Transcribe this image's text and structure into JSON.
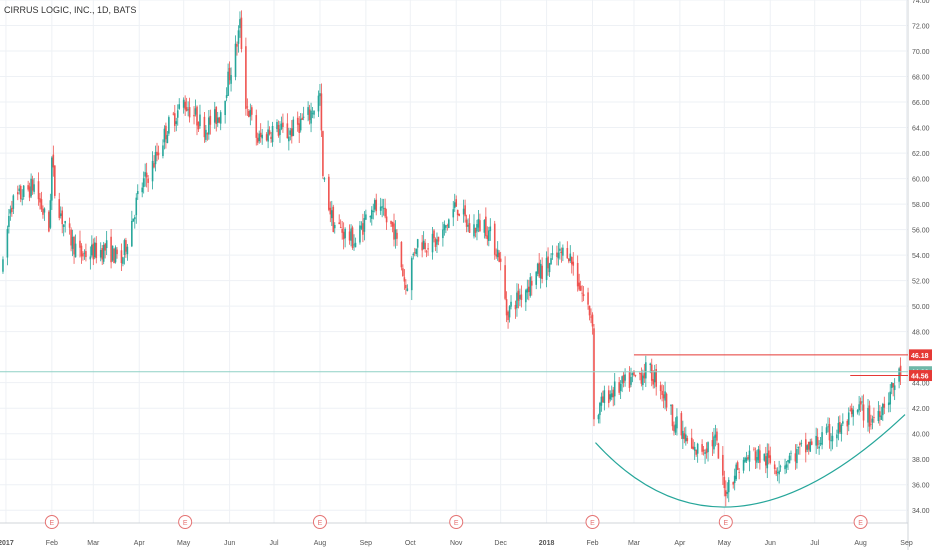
{
  "header": {
    "title": "CIRRUS LOGIC, INC., 1D, BATS"
  },
  "colors": {
    "up": "#26a69a",
    "down": "#ef5350",
    "bg": "#ffffff",
    "grid": "#eef1f5",
    "axis_text": "#555555",
    "resistance": "#e53935",
    "price_line": "#8fd1c6",
    "cup_curve": "#26a69a",
    "earnings": "#e57373",
    "price_badge": "#6fb8a9"
  },
  "chart_data": {
    "type": "candlestick",
    "title": "CIRRUS LOGIC, INC., 1D, BATS",
    "ylim": [
      33,
      74
    ],
    "y_ticks": [
      {
        "v": 34,
        "label": "34.00"
      },
      {
        "v": 36,
        "label": "36.00"
      },
      {
        "v": 38,
        "label": "38.00"
      },
      {
        "v": 40,
        "label": "40.00"
      },
      {
        "v": 42,
        "label": "42.00"
      },
      {
        "v": 44,
        "label": "44.00"
      },
      {
        "v": 48,
        "label": "48.00"
      },
      {
        "v": 50,
        "label": "50.00"
      },
      {
        "v": 52,
        "label": "52.00"
      },
      {
        "v": 54,
        "label": "54.00"
      },
      {
        "v": 56,
        "label": "56.00"
      },
      {
        "v": 58,
        "label": "58.00"
      },
      {
        "v": 60,
        "label": "60.00"
      },
      {
        "v": 62,
        "label": "62.00"
      },
      {
        "v": 64,
        "label": "64.00"
      },
      {
        "v": 66,
        "label": "66.00"
      },
      {
        "v": 68,
        "label": "68.00"
      },
      {
        "v": 70,
        "label": "70.00"
      },
      {
        "v": 72,
        "label": "72.00"
      },
      {
        "v": 74,
        "label": "74.00"
      }
    ],
    "x_ticks": [
      {
        "d": "2017-01-01",
        "label": "2017",
        "bold": true
      },
      {
        "d": "2017-02-01",
        "label": "Feb"
      },
      {
        "d": "2017-03-01",
        "label": "Mar"
      },
      {
        "d": "2017-04-01",
        "label": "Apr"
      },
      {
        "d": "2017-05-01",
        "label": "May"
      },
      {
        "d": "2017-06-01",
        "label": "Jun"
      },
      {
        "d": "2017-07-01",
        "label": "Jul"
      },
      {
        "d": "2017-08-01",
        "label": "Aug"
      },
      {
        "d": "2017-09-01",
        "label": "Sep"
      },
      {
        "d": "2017-10-01",
        "label": "Oct"
      },
      {
        "d": "2017-11-01",
        "label": "Nov"
      },
      {
        "d": "2017-12-01",
        "label": "Dec"
      },
      {
        "d": "2018-01-01",
        "label": "2018",
        "bold": true
      },
      {
        "d": "2018-02-01",
        "label": "Feb"
      },
      {
        "d": "2018-03-01",
        "label": "Mar"
      },
      {
        "d": "2018-04-01",
        "label": "Apr"
      },
      {
        "d": "2018-05-01",
        "label": "May"
      },
      {
        "d": "2018-06-01",
        "label": "Jun"
      },
      {
        "d": "2018-07-01",
        "label": "Jul"
      },
      {
        "d": "2018-08-01",
        "label": "Aug"
      },
      {
        "d": "2018-09-01",
        "label": "Sep"
      }
    ],
    "x_range": [
      "2016-12-28",
      "2018-09-02"
    ],
    "earnings_marker": "E",
    "earnings_dates": [
      "2017-02-01",
      "2017-05-02",
      "2017-08-01",
      "2017-11-01",
      "2018-02-01",
      "2018-05-02",
      "2018-08-01"
    ],
    "trend_path": [
      [
        "2016-12-30",
        53.0
      ],
      [
        "2017-01-04",
        58.0
      ],
      [
        "2017-01-20",
        59.5
      ],
      [
        "2017-01-30",
        56.0
      ],
      [
        "2017-02-01",
        61.5
      ],
      [
        "2017-02-03",
        59.0
      ],
      [
        "2017-02-10",
        56.0
      ],
      [
        "2017-02-20",
        54.0
      ],
      [
        "2017-03-10",
        54.5
      ],
      [
        "2017-03-20",
        53.5
      ],
      [
        "2017-04-01",
        59.0
      ],
      [
        "2017-04-10",
        61.0
      ],
      [
        "2017-04-20",
        64.0
      ],
      [
        "2017-05-01",
        66.0
      ],
      [
        "2017-05-15",
        64.0
      ],
      [
        "2017-05-25",
        65.0
      ],
      [
        "2017-06-05",
        70.0
      ],
      [
        "2017-06-08",
        72.0
      ],
      [
        "2017-06-12",
        66.0
      ],
      [
        "2017-06-20",
        63.0
      ],
      [
        "2017-07-01",
        64.0
      ],
      [
        "2017-07-10",
        63.5
      ],
      [
        "2017-07-25",
        65.0
      ],
      [
        "2017-08-01",
        66.5
      ],
      [
        "2017-08-03",
        60.0
      ],
      [
        "2017-08-10",
        56.5
      ],
      [
        "2017-08-25",
        55.0
      ],
      [
        "2017-09-05",
        58.0
      ],
      [
        "2017-09-20",
        56.0
      ],
      [
        "2017-09-28",
        51.5
      ],
      [
        "2017-10-05",
        55.0
      ],
      [
        "2017-10-20",
        55.0
      ],
      [
        "2017-11-01",
        58.0
      ],
      [
        "2017-11-10",
        56.0
      ],
      [
        "2017-11-20",
        56.5
      ],
      [
        "2017-11-30",
        54.0
      ],
      [
        "2017-12-05",
        49.5
      ],
      [
        "2017-12-15",
        51.0
      ],
      [
        "2017-12-25",
        52.5
      ],
      [
        "2018-01-05",
        53.5
      ],
      [
        "2018-01-15",
        54.5
      ],
      [
        "2018-01-25",
        51.0
      ],
      [
        "2018-02-01",
        49.0
      ],
      [
        "2018-02-02",
        41.0
      ],
      [
        "2018-02-10",
        43.0
      ],
      [
        "2018-02-25",
        44.0
      ],
      [
        "2018-03-10",
        45.0
      ],
      [
        "2018-03-18",
        44.0
      ],
      [
        "2018-03-28",
        41.0
      ],
      [
        "2018-04-10",
        38.5
      ],
      [
        "2018-04-25",
        39.5
      ],
      [
        "2018-05-01",
        35.5
      ],
      [
        "2018-05-08",
        37.0
      ],
      [
        "2018-05-20",
        38.5
      ],
      [
        "2018-06-05",
        37.5
      ],
      [
        "2018-06-20",
        38.5
      ],
      [
        "2018-07-05",
        39.5
      ],
      [
        "2018-07-20",
        40.5
      ],
      [
        "2018-08-01",
        42.0
      ],
      [
        "2018-08-08",
        41.0
      ],
      [
        "2018-08-20",
        43.0
      ],
      [
        "2018-08-28",
        44.86
      ]
    ],
    "resistance_lines": [
      {
        "value": 46.18,
        "from": "2018-03-01",
        "to": "2018-09-02",
        "label": "46.18"
      },
      {
        "value": 44.56,
        "from": "2018-07-25",
        "to": "2018-09-02",
        "label": "44.56"
      }
    ],
    "last_price": {
      "value": 44.86,
      "label": "44.86"
    },
    "cup_curve": {
      "points": [
        [
          "2018-02-03",
          39.3
        ],
        [
          "2018-05-10",
          34.3
        ],
        [
          "2018-08-31",
          41.5
        ]
      ]
    }
  }
}
